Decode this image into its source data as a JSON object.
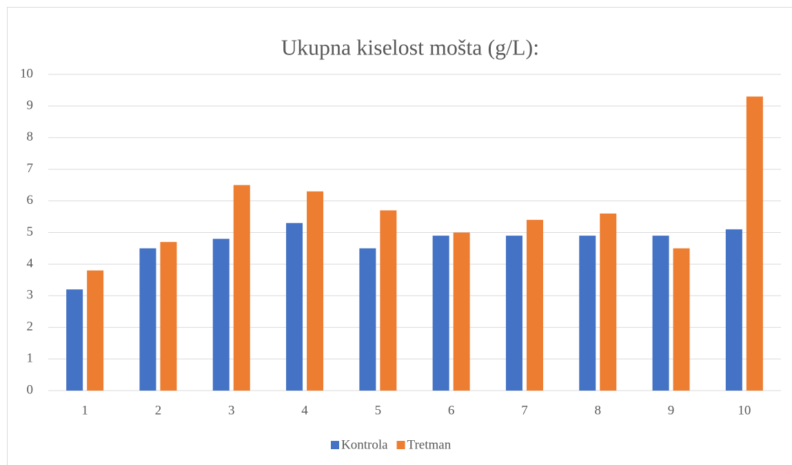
{
  "chart_data": {
    "type": "bar",
    "title": "Ukupna kiselost mošta (g/L):",
    "categories": [
      "1",
      "2",
      "3",
      "4",
      "5",
      "6",
      "7",
      "8",
      "9",
      "10"
    ],
    "series": [
      {
        "name": "Kontrola",
        "color": "#4472c4",
        "values": [
          3.2,
          4.5,
          4.8,
          5.3,
          4.5,
          4.9,
          4.9,
          4.9,
          4.9,
          5.1
        ]
      },
      {
        "name": "Tretman",
        "color": "#ed7d31",
        "values": [
          3.8,
          4.7,
          6.5,
          6.3,
          5.7,
          5.0,
          5.4,
          5.6,
          4.5,
          9.3
        ]
      }
    ],
    "ylim": [
      0,
      10
    ],
    "yticks": [
      0,
      1,
      2,
      3,
      4,
      5,
      6,
      7,
      8,
      9,
      10
    ],
    "grid": true,
    "legend": "bottom"
  }
}
